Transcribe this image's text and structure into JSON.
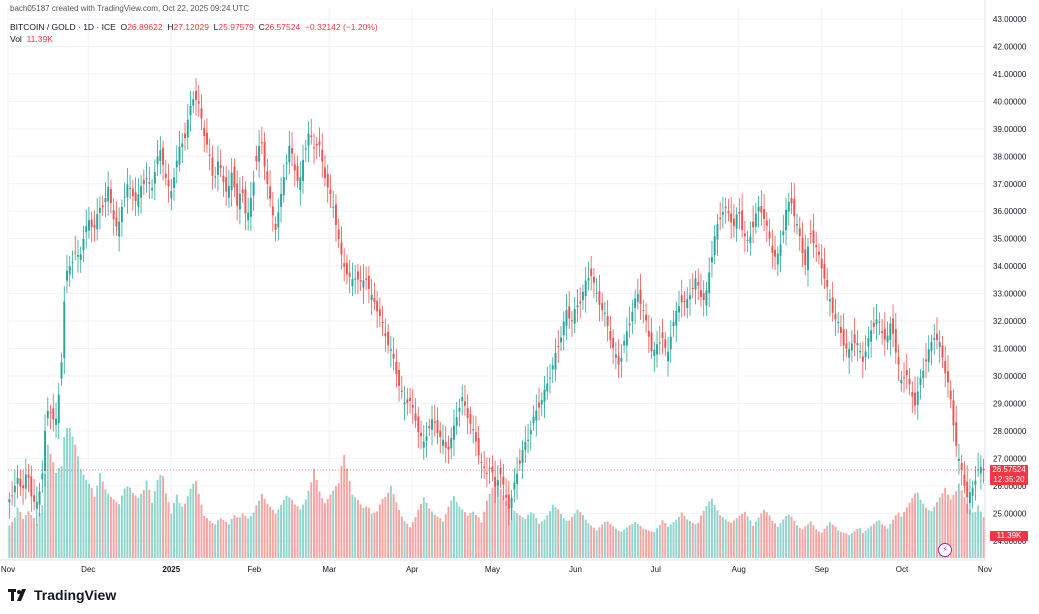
{
  "header": {
    "credit": "bach05187 created with TradingView.com, Oct 22, 2025 09:24 UTC",
    "symbol": "BITCOIN / GOLD · 1D · ICE",
    "open_label": "O",
    "open": "26.89622",
    "high_label": "H",
    "high": "27.12029",
    "low_label": "L",
    "low": "25.97579",
    "close_label": "C",
    "close": "26.57524",
    "change": "−0.32142 (−1.20%)",
    "vol_label": "Vol",
    "vol": "11.39K"
  },
  "price_tags": {
    "last_price": "26.57524",
    "countdown": "12:35:20",
    "volume": "11.39K"
  },
  "colors": {
    "up": "#26a69a",
    "down": "#ef5350",
    "up_vol": "#8fd4cd",
    "down_vol": "#f5a4a2",
    "tag": "#f23645"
  },
  "footer": {
    "brand": "TradingView"
  },
  "chart_data": {
    "type": "candlestick",
    "title": "BITCOIN / GOLD · 1D · ICE",
    "y_ticks": [
      "43.00000",
      "42.00000",
      "41.00000",
      "40.00000",
      "39.00000",
      "38.00000",
      "37.00000",
      "36.00000",
      "35.00000",
      "34.00000",
      "33.00000",
      "32.00000",
      "31.00000",
      "30.00000",
      "29.00000",
      "28.00000",
      "27.00000",
      "26.00000",
      "25.00000",
      "24.00000"
    ],
    "ylim": [
      23.3,
      43.4
    ],
    "x_labels": [
      "Nov",
      "Dec",
      "2025",
      "Feb",
      "Mar",
      "Apr",
      "May",
      "Jun",
      "Jul",
      "Aug",
      "Sep",
      "Oct",
      "Nov"
    ],
    "x_label_index": [
      0,
      30,
      61,
      92,
      120,
      151,
      181,
      212,
      242,
      273,
      304,
      334,
      365
    ],
    "bars_total": 356,
    "last_price": 26.57524,
    "closes": [
      25.4,
      25.8,
      26.2,
      25.9,
      26.5,
      25.6,
      25.3,
      26.1,
      28.6,
      28.7,
      28.3,
      29.8,
      33.6,
      34.0,
      34.5,
      34.2,
      35.3,
      35.6,
      35.4,
      36.0,
      36.3,
      36.8,
      35.9,
      35.2,
      36.4,
      36.9,
      36.7,
      36.3,
      37.0,
      37.2,
      36.7,
      37.8,
      38.2,
      37.3,
      36.5,
      37.6,
      38.3,
      38.7,
      39.6,
      40.3,
      39.8,
      38.9,
      38.2,
      37.1,
      37.8,
      37.2,
      36.6,
      37.5,
      36.2,
      36.8,
      35.7,
      36.5,
      37.9,
      38.6,
      37.4,
      36.2,
      35.4,
      36.3,
      37.6,
      38.4,
      37.6,
      36.9,
      38.1,
      38.9,
      38.3,
      38.6,
      37.5,
      36.9,
      36.2,
      35.3,
      34.1,
      33.8,
      33.4,
      33.7,
      33.3,
      33.6,
      32.9,
      32.6,
      32.1,
      31.5,
      31.0,
      30.4,
      29.6,
      29.0,
      29.2,
      28.6,
      28.0,
      27.5,
      28.1,
      28.4,
      28.0,
      27.6,
      27.3,
      27.8,
      28.6,
      29.2,
      28.7,
      28.2,
      27.6,
      26.9,
      26.4,
      26.8,
      25.9,
      26.6,
      25.7,
      25.2,
      26.0,
      26.8,
      27.4,
      27.8,
      28.4,
      28.9,
      29.2,
      29.8,
      30.3,
      31.0,
      31.6,
      32.4,
      32.0,
      32.5,
      32.8,
      33.4,
      33.8,
      33.1,
      32.6,
      32.2,
      31.5,
      30.8,
      30.4,
      31.2,
      31.8,
      32.6,
      33.0,
      32.4,
      31.6,
      30.8,
      31.1,
      31.5,
      30.6,
      31.8,
      32.3,
      32.8,
      32.6,
      33.1,
      33.5,
      33.0,
      32.7,
      34.0,
      35.1,
      35.7,
      36.2,
      35.8,
      35.5,
      36.0,
      35.2,
      34.8,
      35.5,
      36.1,
      36.0,
      35.3,
      34.6,
      34.2,
      35.0,
      36.1,
      36.4,
      35.6,
      34.9,
      34.0,
      35.2,
      34.8,
      34.2,
      33.6,
      32.8,
      32.2,
      31.8,
      31.2,
      30.8,
      31.4,
      31.0,
      30.6,
      31.2,
      31.8,
      32.1,
      31.6,
      31.3,
      32.0,
      30.8,
      29.8,
      30.2,
      29.4,
      29.0,
      29.8,
      30.5,
      31.0,
      31.5,
      31.2,
      30.4,
      29.6,
      28.2,
      27.0,
      26.3,
      25.5,
      25.9,
      26.6,
      26.58
    ],
    "volumes_k": [
      14,
      16,
      19,
      15,
      17,
      14,
      13,
      19,
      36,
      30,
      26,
      28,
      42,
      35,
      30,
      24,
      21,
      19,
      17,
      22,
      18,
      16,
      15,
      14,
      18,
      19,
      17,
      16,
      18,
      20,
      16,
      22,
      25,
      18,
      14,
      20,
      16,
      19,
      24,
      28,
      21,
      16,
      15,
      14,
      17,
      15,
      13,
      16,
      14,
      15,
      13,
      14,
      17,
      19,
      16,
      14,
      13,
      15,
      17,
      16,
      14,
      13,
      15,
      19,
      22,
      17,
      14,
      16,
      18,
      20,
      28,
      22,
      17,
      16,
      14,
      15,
      13,
      14,
      18,
      20,
      23,
      19,
      15,
      13,
      12,
      16,
      22,
      25,
      20,
      17,
      15,
      14,
      18,
      21,
      17,
      15,
      13,
      14,
      12,
      11,
      16,
      19,
      21,
      18,
      15,
      13,
      12,
      11,
      10,
      12,
      11,
      9,
      10,
      12,
      14,
      13,
      11,
      10,
      12,
      14,
      13,
      11,
      10,
      9,
      11,
      13,
      12,
      11,
      10,
      12,
      14,
      15,
      13,
      11,
      10,
      9,
      11,
      12,
      10,
      11,
      12,
      13,
      11,
      10,
      9,
      12,
      14,
      16,
      13,
      11,
      10,
      9,
      10,
      11,
      12,
      10,
      9,
      11,
      13,
      12,
      10,
      9,
      11,
      13,
      12,
      10,
      9,
      11,
      12,
      10,
      9,
      12,
      14,
      13,
      11,
      10,
      9,
      10,
      11,
      9,
      10,
      11,
      12,
      10,
      9,
      11,
      13,
      12,
      14,
      16,
      18,
      15,
      13,
      12,
      14,
      16,
      18,
      15,
      17,
      19,
      16,
      13,
      12,
      14,
      11.39
    ]
  }
}
